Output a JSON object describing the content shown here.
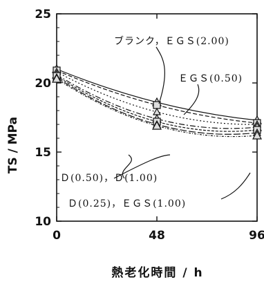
{
  "chart_data": {
    "type": "line",
    "title": "",
    "xlabel": "熱老化時間 / h",
    "ylabel": "TS / MPa",
    "x": [
      0,
      48,
      96
    ],
    "xticks": [
      "0",
      "48",
      "96"
    ],
    "yticks": [
      "10",
      "15",
      "20",
      "25"
    ],
    "xlim": [
      0,
      96
    ],
    "ylim": [
      10,
      25
    ],
    "grid": false,
    "legend": "none",
    "series": [
      {
        "name": "ブランク",
        "values": [
          21.0,
          18.6,
          17.3
        ]
      },
      {
        "name": "EGS(2.00)",
        "values": [
          20.9,
          18.4,
          17.1
        ]
      },
      {
        "name": "EGS(0.50)",
        "values": [
          20.8,
          17.9,
          17.0
        ]
      },
      {
        "name": "D(0.50)",
        "values": [
          20.6,
          17.4,
          16.8
        ]
      },
      {
        "name": "D(1.00)",
        "values": [
          20.5,
          17.2,
          16.6
        ]
      },
      {
        "name": "D(0.25)",
        "values": [
          20.4,
          17.0,
          16.4
        ]
      },
      {
        "name": "EGS(1.00)",
        "values": [
          20.3,
          16.9,
          16.2
        ]
      }
    ],
    "annotations": [
      "ブランク，ＥＧＳ(2.00)",
      "ＥＧＳ(0.50)",
      "Ｄ(0.50)，Ｄ(1.00)",
      "Ｄ(0.25)，ＥＧＳ(1.00)"
    ]
  }
}
